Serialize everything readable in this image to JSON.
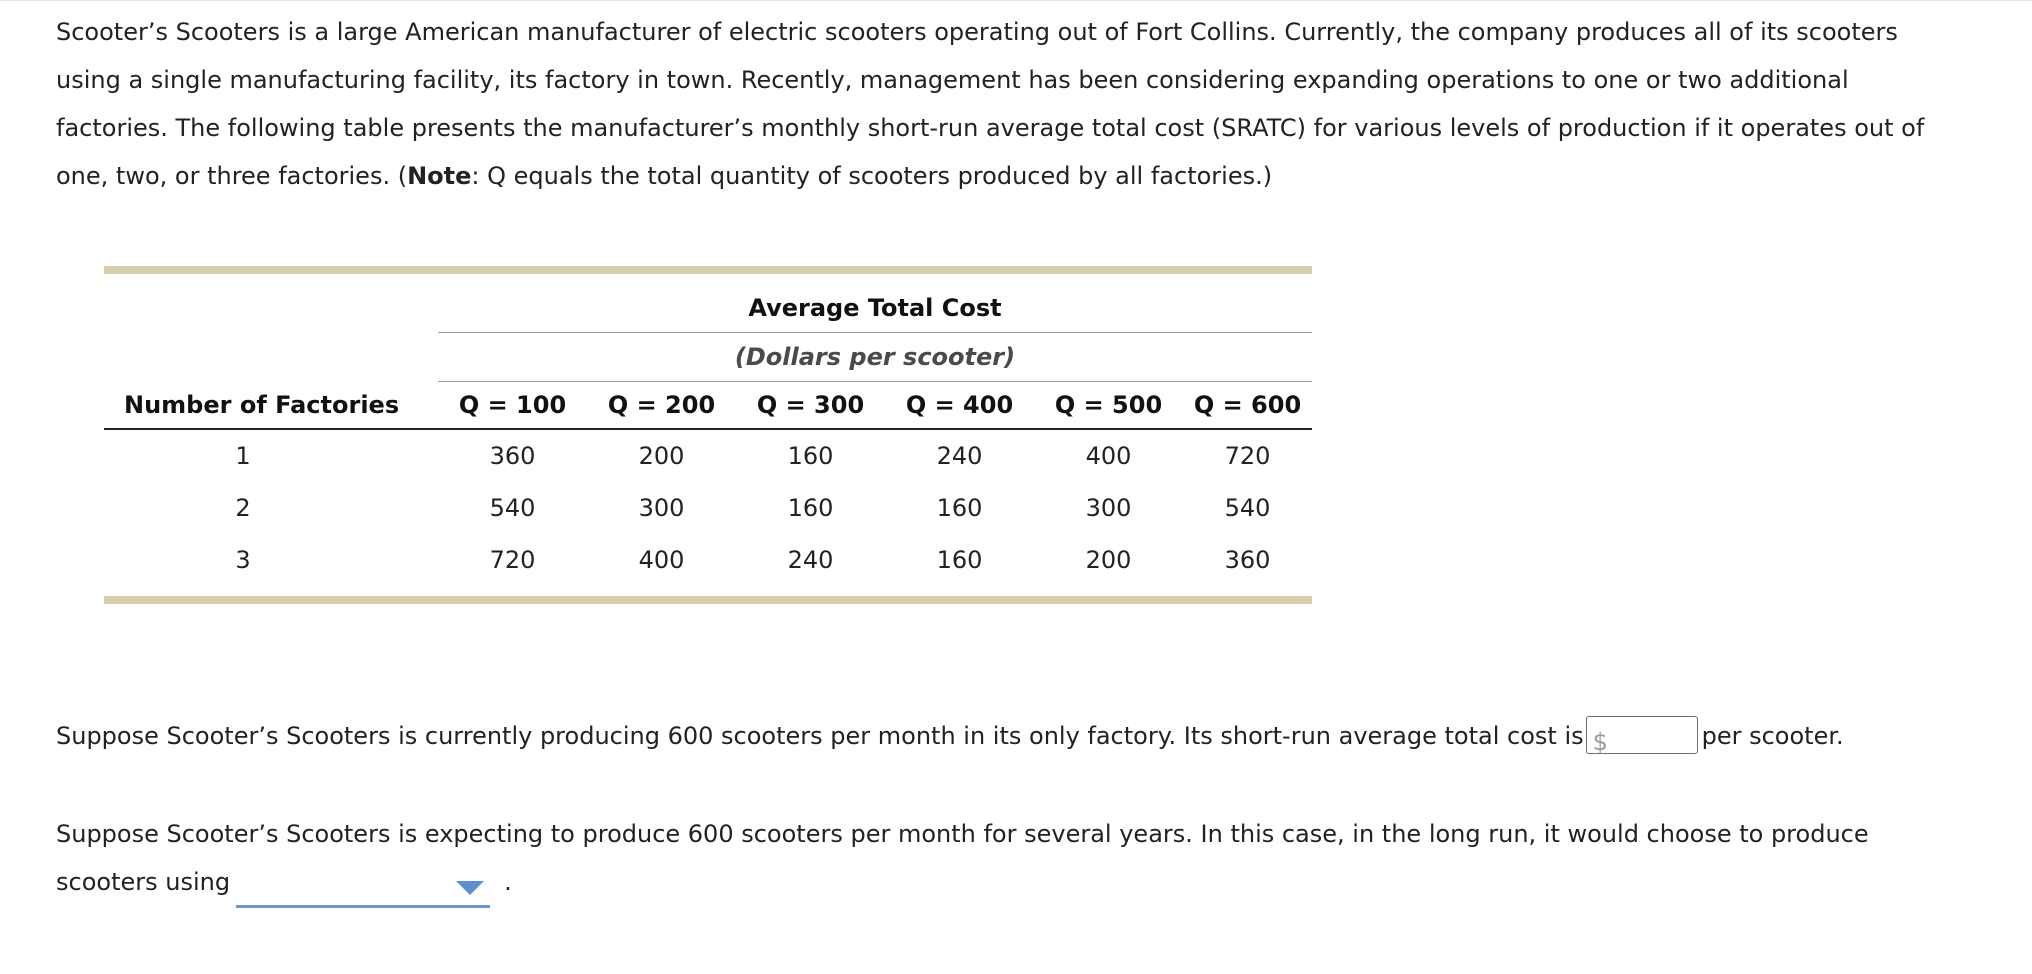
{
  "intro": {
    "part1": "Scooter’s Scooters is a large American manufacturer of electric scooters operating out of Fort Collins. Currently, the company produces all of its scooters using a single manufacturing facility, its factory in town. Recently, management has been considering expanding operations to one or two additional factories. The following table presents the manufacturer’s monthly short-run average total cost (SRATC) for various levels of production if it operates out of one, two, or three factories. (",
    "note_label": "Note",
    "part2": ": Q equals the total quantity of scooters produced by all factories.)"
  },
  "table": {
    "group_title": "Average Total Cost",
    "group_subtitle": "(Dollars per scooter)",
    "row_header": "Number of Factories",
    "columns": [
      "Q = 100",
      "Q = 200",
      "Q = 300",
      "Q = 400",
      "Q = 500",
      "Q = 600"
    ],
    "rows": [
      {
        "factories": "1",
        "values": [
          "360",
          "200",
          "160",
          "240",
          "400",
          "720"
        ]
      },
      {
        "factories": "2",
        "values": [
          "540",
          "300",
          "160",
          "160",
          "300",
          "540"
        ]
      },
      {
        "factories": "3",
        "values": [
          "720",
          "400",
          "240",
          "160",
          "200",
          "360"
        ]
      }
    ],
    "border_color": "#d8cfac"
  },
  "question1": {
    "text_before": "Suppose Scooter’s Scooters is currently producing 600 scooters per month in its only factory. Its short-run average total cost is",
    "currency_symbol": "$",
    "input_value": "",
    "text_after": "per scooter."
  },
  "question2": {
    "text_before": "Suppose Scooter’s Scooters is expecting to produce 600 scooters per month for several years. In this case, in the long run, it would choose to produce scooters using",
    "dropdown_selected": "",
    "dropdown_icon": "triangle-down-icon",
    "text_after": "."
  },
  "colors": {
    "accent_blue": "#5b8fd0",
    "text": "#222222"
  }
}
